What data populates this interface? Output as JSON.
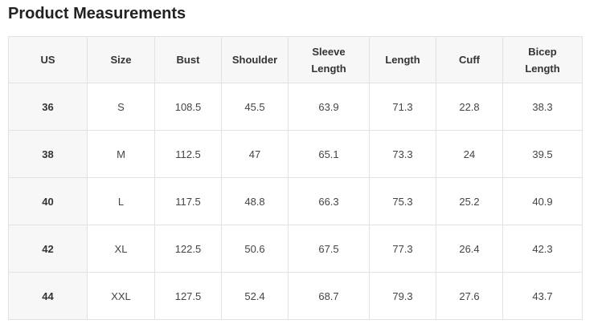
{
  "title": "Product Measurements",
  "table": {
    "headers": [
      "US",
      "Size",
      "Bust",
      "Shoulder",
      "Sleeve\nLength",
      "Length",
      "Cuff",
      "Bicep\nLength"
    ],
    "rows": [
      [
        "36",
        "S",
        "108.5",
        "45.5",
        "63.9",
        "71.3",
        "22.8",
        "38.3"
      ],
      [
        "38",
        "M",
        "112.5",
        "47",
        "65.1",
        "73.3",
        "24",
        "39.5"
      ],
      [
        "40",
        "L",
        "117.5",
        "48.8",
        "66.3",
        "75.3",
        "25.2",
        "40.9"
      ],
      [
        "42",
        "XL",
        "122.5",
        "50.6",
        "67.5",
        "77.3",
        "26.4",
        "42.3"
      ],
      [
        "44",
        "XXL",
        "127.5",
        "52.4",
        "68.7",
        "79.3",
        "27.6",
        "43.7"
      ]
    ]
  }
}
